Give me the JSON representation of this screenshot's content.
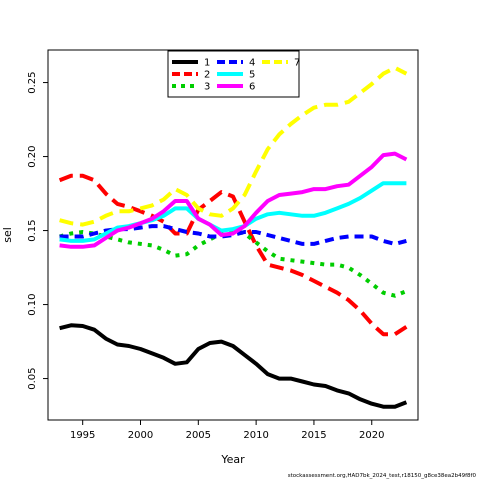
{
  "chart_data": {
    "type": "line",
    "title": "",
    "xlabel": "Year",
    "ylabel": "sel",
    "xlim": [
      1992,
      2024
    ],
    "ylim": [
      0.022,
      0.272
    ],
    "x_ticks": [
      1995,
      2000,
      2005,
      2010,
      2015,
      2020
    ],
    "y_ticks": [
      0.05,
      0.1,
      0.15,
      0.2,
      0.25
    ],
    "y_tick_labels": [
      "0.05",
      "0.10",
      "0.15",
      "0.20",
      "0.25"
    ],
    "grid": false,
    "legend_position": "top-center",
    "x": [
      1993,
      1994,
      1995,
      1996,
      1997,
      1998,
      1999,
      2000,
      2001,
      2002,
      2003,
      2004,
      2005,
      2006,
      2007,
      2008,
      2009,
      2010,
      2011,
      2012,
      2013,
      2014,
      2015,
      2016,
      2017,
      2018,
      2019,
      2020,
      2021,
      2022,
      2023
    ],
    "series": [
      {
        "name": "1",
        "color": "#000000",
        "dash": "solid",
        "values": [
          0.084,
          0.086,
          0.0855,
          0.083,
          0.077,
          0.073,
          0.072,
          0.07,
          0.067,
          0.064,
          0.06,
          0.061,
          0.07,
          0.074,
          0.075,
          0.072,
          0.066,
          0.06,
          0.053,
          0.05,
          0.05,
          0.048,
          0.046,
          0.045,
          0.042,
          0.04,
          0.036,
          0.033,
          0.031,
          0.031,
          0.034
        ]
      },
      {
        "name": "2",
        "color": "#ff0000",
        "dash": "longdash",
        "values": [
          0.184,
          0.187,
          0.187,
          0.184,
          0.175,
          0.168,
          0.166,
          0.163,
          0.16,
          0.156,
          0.148,
          0.148,
          0.164,
          0.17,
          0.176,
          0.173,
          0.156,
          0.14,
          0.127,
          0.125,
          0.123,
          0.12,
          0.116,
          0.112,
          0.108,
          0.103,
          0.096,
          0.087,
          0.08,
          0.08,
          0.085
        ]
      },
      {
        "name": "3",
        "color": "#00cd00",
        "dash": "dotted",
        "values": [
          0.146,
          0.148,
          0.149,
          0.148,
          0.146,
          0.144,
          0.142,
          0.141,
          0.14,
          0.137,
          0.133,
          0.134,
          0.14,
          0.144,
          0.148,
          0.15,
          0.148,
          0.142,
          0.136,
          0.131,
          0.13,
          0.129,
          0.128,
          0.127,
          0.127,
          0.125,
          0.12,
          0.114,
          0.108,
          0.106,
          0.109
        ]
      },
      {
        "name": "4",
        "color": "#0000ff",
        "dash": "dashed",
        "values": [
          0.146,
          0.146,
          0.146,
          0.148,
          0.15,
          0.151,
          0.151,
          0.152,
          0.153,
          0.153,
          0.151,
          0.149,
          0.148,
          0.146,
          0.146,
          0.147,
          0.149,
          0.149,
          0.147,
          0.145,
          0.143,
          0.141,
          0.141,
          0.143,
          0.145,
          0.146,
          0.146,
          0.146,
          0.143,
          0.141,
          0.143
        ]
      },
      {
        "name": "5",
        "color": "#00ffff",
        "dash": "solid",
        "values": [
          0.144,
          0.143,
          0.143,
          0.144,
          0.148,
          0.152,
          0.153,
          0.155,
          0.157,
          0.16,
          0.165,
          0.165,
          0.158,
          0.154,
          0.15,
          0.151,
          0.153,
          0.158,
          0.161,
          0.162,
          0.161,
          0.16,
          0.16,
          0.162,
          0.165,
          0.168,
          0.172,
          0.177,
          0.182,
          0.182,
          0.182
        ]
      },
      {
        "name": "6",
        "color": "#ff00ff",
        "dash": "solid",
        "values": [
          0.14,
          0.139,
          0.139,
          0.14,
          0.145,
          0.15,
          0.152,
          0.155,
          0.158,
          0.163,
          0.17,
          0.17,
          0.158,
          0.154,
          0.147,
          0.148,
          0.153,
          0.162,
          0.17,
          0.174,
          0.175,
          0.176,
          0.178,
          0.178,
          0.18,
          0.181,
          0.187,
          0.193,
          0.201,
          0.202,
          0.198
        ]
      },
      {
        "name": "7",
        "color": "#ffff00",
        "dash": "longdash",
        "values": [
          0.157,
          0.155,
          0.154,
          0.156,
          0.16,
          0.163,
          0.163,
          0.165,
          0.167,
          0.171,
          0.178,
          0.174,
          0.165,
          0.161,
          0.16,
          0.165,
          0.174,
          0.19,
          0.205,
          0.215,
          0.222,
          0.228,
          0.233,
          0.235,
          0.235,
          0.237,
          0.243,
          0.249,
          0.256,
          0.26,
          0.256
        ]
      }
    ]
  },
  "footer_text": "stockassessment.org,HAD7bk_2024_test,r18150_g8ce38ea2b49f8f0"
}
